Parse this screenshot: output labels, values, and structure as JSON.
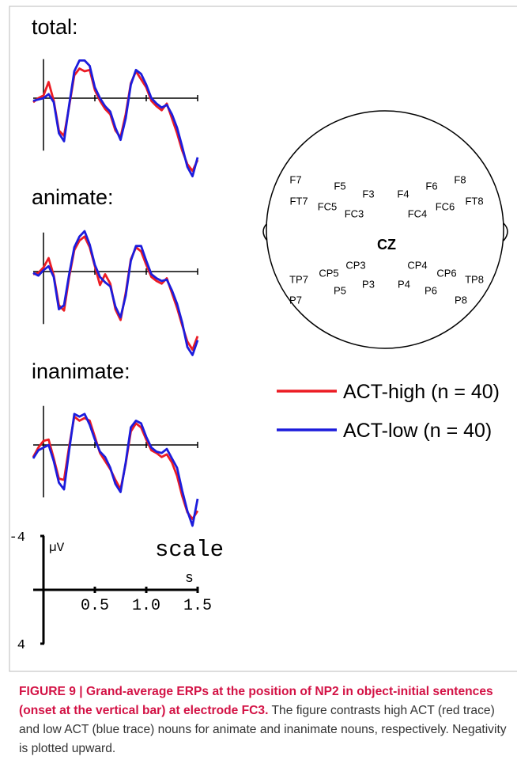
{
  "chart_data": [
    {
      "type": "line",
      "title": "total:",
      "x": [
        -0.1,
        -0.05,
        0,
        0.05,
        0.1,
        0.15,
        0.2,
        0.25,
        0.3,
        0.35,
        0.4,
        0.45,
        0.5,
        0.55,
        0.6,
        0.65,
        0.7,
        0.75,
        0.8,
        0.85,
        0.9,
        0.95,
        1,
        1.05,
        1.1,
        1.15,
        1.2,
        1.25,
        1.3,
        1.35,
        1.4,
        1.45,
        1.5
      ],
      "series": [
        {
          "name": "ACT-high (n = 40)",
          "color": "#ec1c24",
          "values": [
            0.3,
            0.0,
            -0.2,
            -1.2,
            0.2,
            2.4,
            2.8,
            0.6,
            -1.7,
            -2.2,
            -2.0,
            -2.1,
            -0.6,
            0.2,
            0.8,
            1.2,
            2.4,
            2.9,
            1.2,
            -1.1,
            -2.0,
            -1.4,
            -0.8,
            0.2,
            0.6,
            0.9,
            0.4,
            1.5,
            2.6,
            3.9,
            4.9,
            5.4,
            4.6
          ]
        },
        {
          "name": "ACT-low (n = 40)",
          "color": "#1c1cdc",
          "values": [
            0.2,
            0.1,
            0.0,
            -0.3,
            0.3,
            2.6,
            3.2,
            0.5,
            -2.0,
            -2.8,
            -2.8,
            -2.4,
            -0.8,
            0.0,
            0.6,
            1.0,
            2.2,
            3.1,
            1.5,
            -1.0,
            -2.1,
            -1.8,
            -1.0,
            0.0,
            0.4,
            0.7,
            0.5,
            1.2,
            2.2,
            3.6,
            5.1,
            5.8,
            4.4
          ]
        }
      ],
      "xlim": [
        -0.1,
        1.5
      ],
      "ylim": [
        -3.5,
        6.5
      ],
      "negative_up": true
    },
    {
      "type": "line",
      "title": "animate:",
      "x": [
        -0.1,
        -0.05,
        0,
        0.05,
        0.1,
        0.15,
        0.2,
        0.25,
        0.3,
        0.35,
        0.4,
        0.45,
        0.5,
        0.55,
        0.6,
        0.65,
        0.7,
        0.75,
        0.8,
        0.85,
        0.9,
        0.95,
        1,
        1.05,
        1.1,
        1.15,
        1.2,
        1.25,
        1.3,
        1.35,
        1.4,
        1.45,
        1.5
      ],
      "series": [
        {
          "name": "ACT-high (n = 40)",
          "color": "#ec1c24",
          "values": [
            0.2,
            0.1,
            -0.3,
            -1.0,
            0.3,
            2.5,
            2.9,
            0.4,
            -1.6,
            -2.3,
            -2.6,
            -1.8,
            -0.4,
            1.0,
            0.2,
            0.9,
            2.8,
            3.6,
            1.6,
            -0.9,
            -1.8,
            -1.5,
            -0.5,
            0.4,
            0.7,
            0.9,
            0.5,
            1.6,
            2.7,
            4.0,
            5.2,
            5.8,
            4.8
          ]
        },
        {
          "name": "ACT-low (n = 40)",
          "color": "#1c1cdc",
          "values": [
            0.1,
            0.3,
            -0.1,
            -0.4,
            0.4,
            2.8,
            2.5,
            0.2,
            -1.8,
            -2.6,
            -3.0,
            -2.0,
            -0.5,
            0.4,
            0.8,
            1.1,
            2.6,
            3.4,
            1.8,
            -0.8,
            -1.9,
            -1.9,
            -0.8,
            0.2,
            0.5,
            0.7,
            0.6,
            1.4,
            2.4,
            3.8,
            5.6,
            6.2,
            5.1
          ]
        }
      ],
      "xlim": [
        -0.1,
        1.5
      ],
      "ylim": [
        -3.5,
        6.5
      ],
      "negative_up": true
    },
    {
      "type": "line",
      "title": "inanimate:",
      "x": [
        -0.1,
        -0.05,
        0,
        0.05,
        0.1,
        0.15,
        0.2,
        0.25,
        0.3,
        0.35,
        0.4,
        0.45,
        0.5,
        0.55,
        0.6,
        0.65,
        0.7,
        0.75,
        0.8,
        0.85,
        0.9,
        0.95,
        1,
        1.05,
        1.1,
        1.15,
        1.2,
        1.25,
        1.3,
        1.35,
        1.4,
        1.45,
        1.5
      ],
      "series": [
        {
          "name": "ACT-high (n = 40)",
          "color": "#ec1c24",
          "values": [
            0.9,
            0.2,
            -0.3,
            -0.4,
            1.0,
            2.5,
            2.6,
            0.1,
            -2.1,
            -1.8,
            -2.0,
            -1.8,
            -0.6,
            0.6,
            1.2,
            1.8,
            2.6,
            3.3,
            1.4,
            -1.0,
            -1.6,
            -1.3,
            -0.4,
            0.4,
            0.6,
            0.9,
            0.7,
            1.3,
            2.3,
            3.8,
            5.0,
            5.5,
            4.9
          ]
        },
        {
          "name": "ACT-low (n = 40)",
          "color": "#1c1cdc",
          "values": [
            1.0,
            0.4,
            0.2,
            0.0,
            1.2,
            2.8,
            3.3,
            0.4,
            -2.3,
            -2.1,
            -2.3,
            -1.5,
            -0.4,
            0.5,
            0.9,
            1.7,
            2.9,
            3.5,
            1.3,
            -1.3,
            -1.8,
            -1.6,
            -0.6,
            0.2,
            0.5,
            0.6,
            0.3,
            1.0,
            1.7,
            3.4,
            4.9,
            6.0,
            4.0
          ]
        }
      ],
      "xlim": [
        -0.1,
        1.5
      ],
      "ylim": [
        -3.5,
        6.5
      ],
      "negative_up": true
    }
  ],
  "scale": {
    "title": "scale",
    "y_label": "µV",
    "x_label": "s",
    "xlim": [
      -0.1,
      1.5
    ],
    "ylim": [
      -4,
      4
    ],
    "xticks": [
      0.5,
      {
        "value": 1,
        "label": "1.0"
      },
      1.5
    ],
    "yticks": [
      -4,
      4
    ]
  },
  "head": {
    "electrodes": [
      "F7",
      "F5",
      "F3",
      "F4",
      "F6",
      "F8",
      "FT7",
      "FC5",
      "FC3",
      "FC4",
      "FC6",
      "FT8",
      "CZ",
      "CP3",
      "CP4",
      "CP5",
      "CP6",
      "TP7",
      "TP8",
      "P3",
      "P4",
      "P5",
      "P6",
      "P7",
      "P8"
    ]
  },
  "caption": {
    "label": "FIGURE 9 |",
    "title": "Grand-average ERPs at the position of NP2 in object-initial sentences (onset at the vertical bar) at electrode FC3.",
    "text": "The figure contrasts high ACT (red trace) and low ACT (blue trace) nouns for animate and inanimate nouns, respectively. Negativity is plotted upward."
  }
}
